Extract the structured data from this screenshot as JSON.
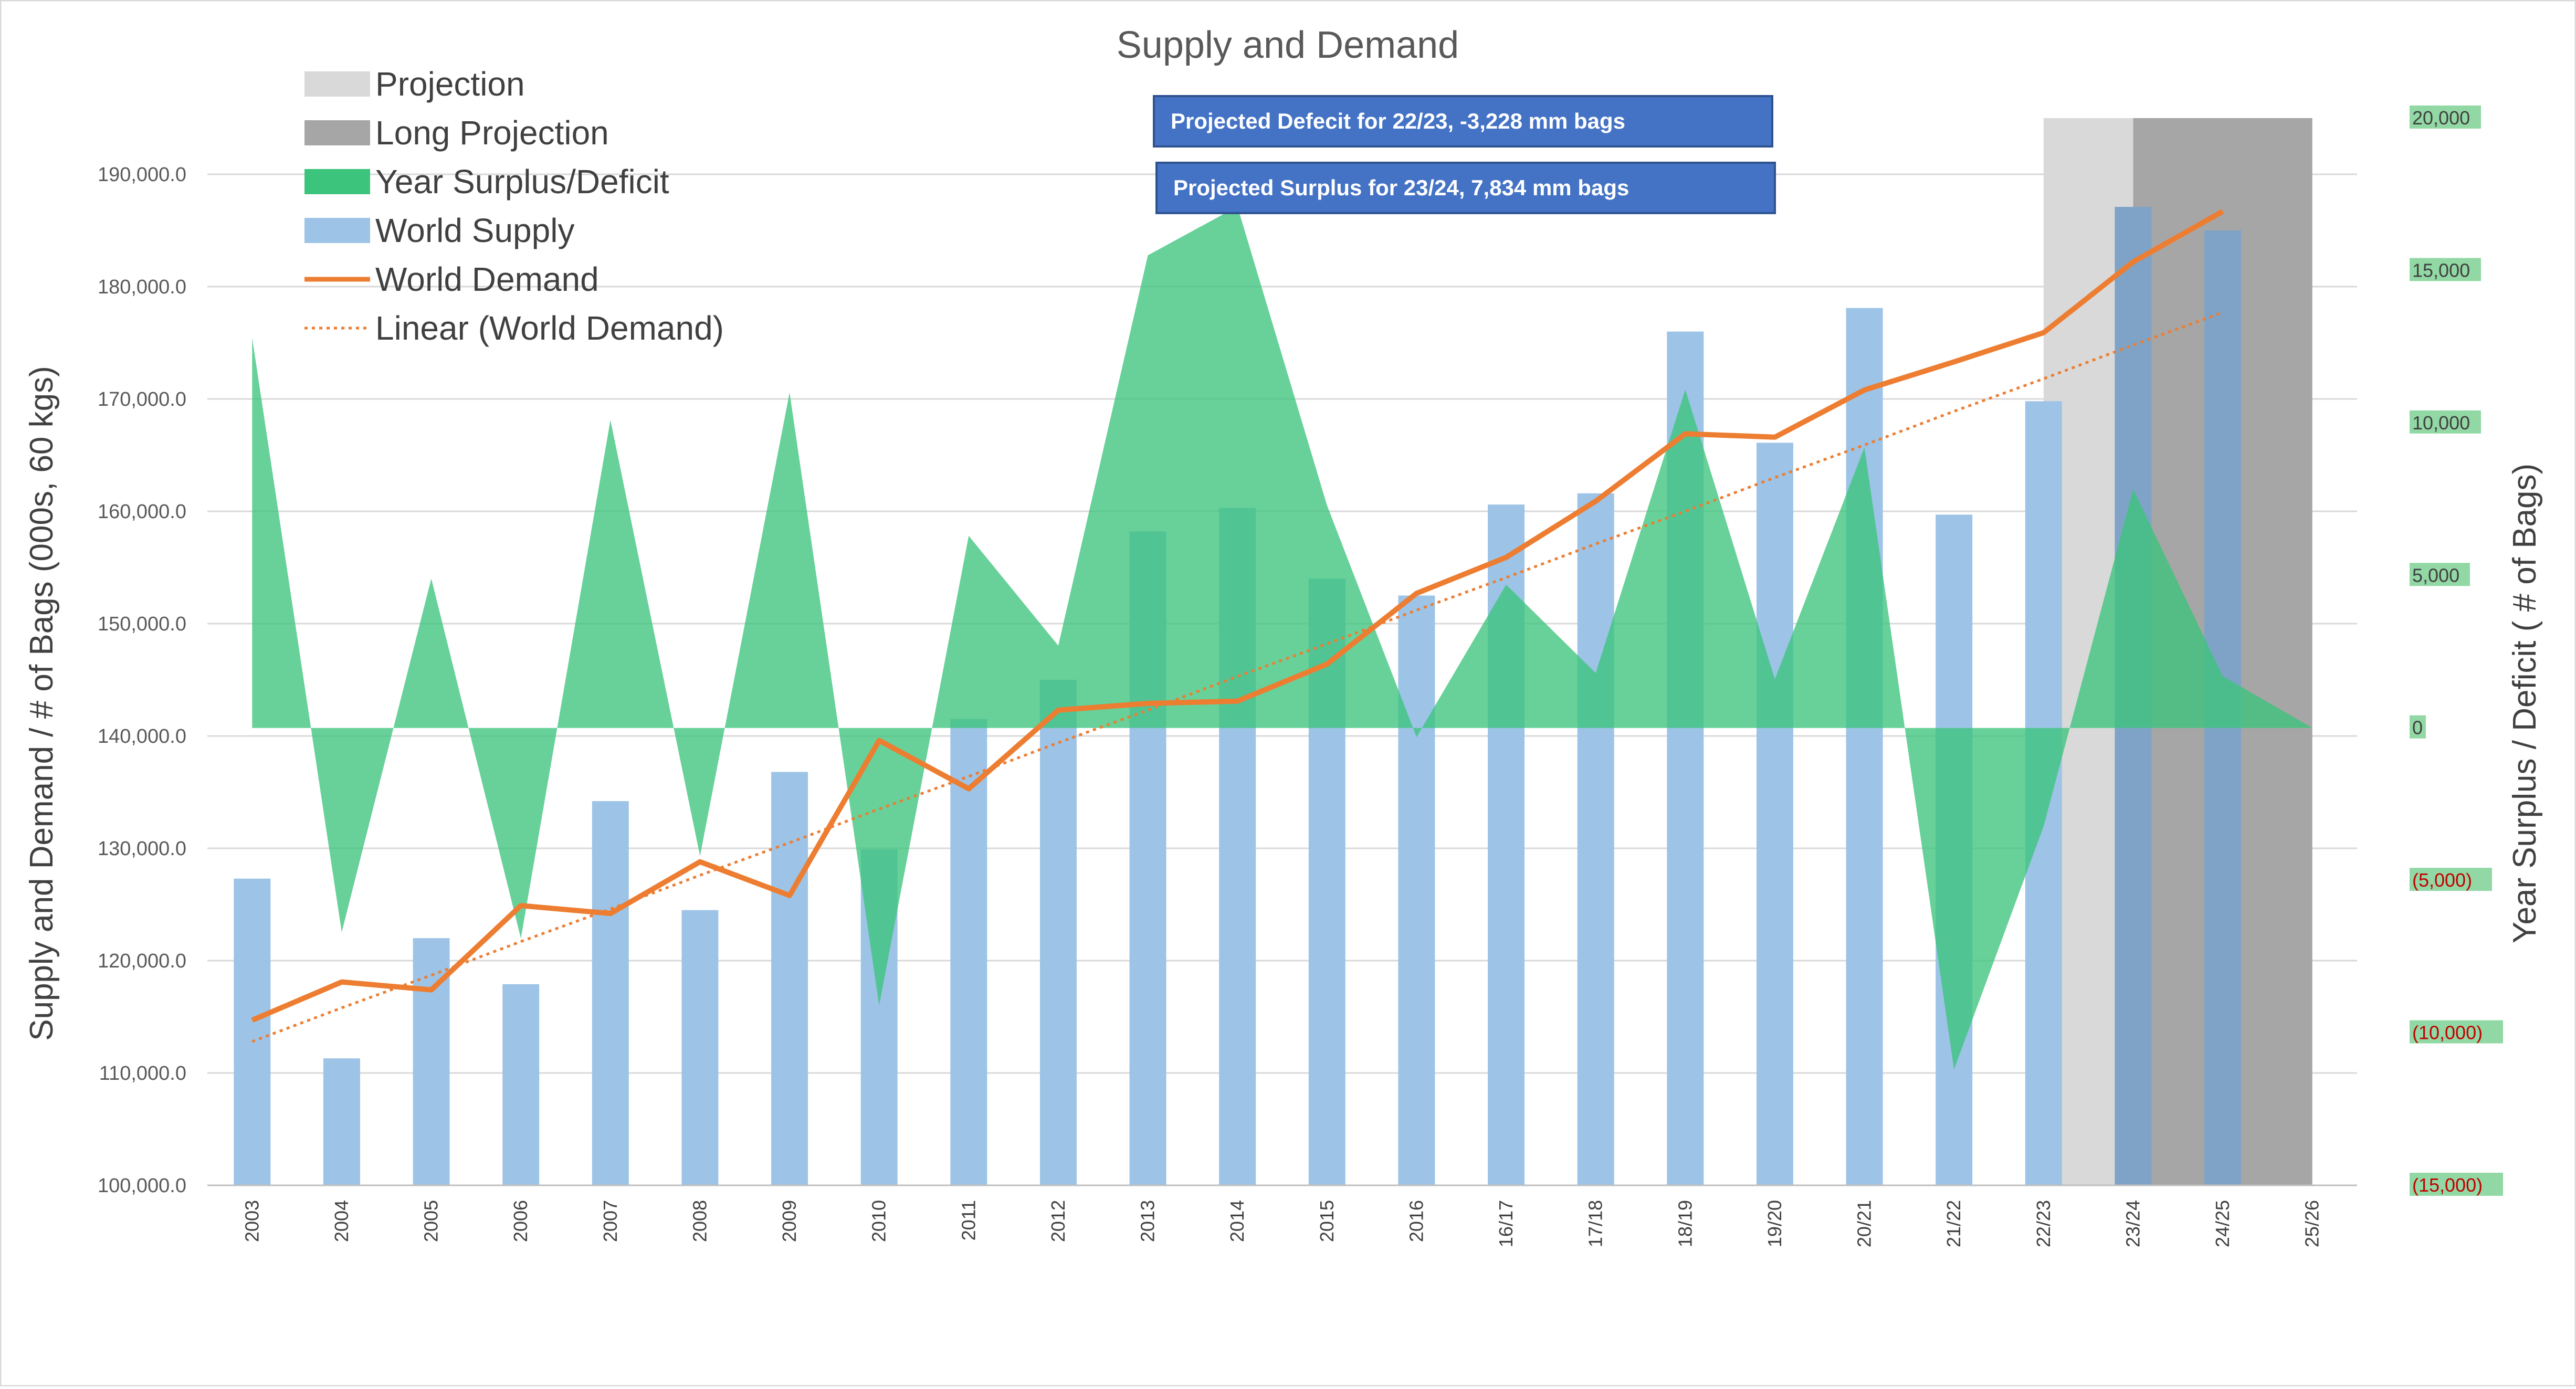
{
  "chart_data": {
    "type": "bar",
    "title": "Supply and Demand",
    "ylabel": "Supply and Demand / # of Bags (000s, 60 kgs)",
    "y2label": "Year Surplus / Deficit ( # of Bags)",
    "ylim": [
      100000,
      195000
    ],
    "y2lim": [
      -15000,
      20000
    ],
    "y_ticks": [
      "100,000.0",
      "110,000.0",
      "120,000.0",
      "130,000.0",
      "140,000.0",
      "150,000.0",
      "160,000.0",
      "170,000.0",
      "180,000.0",
      "190,000.0"
    ],
    "y2_ticks": [
      "(15,000)",
      "(10,000)",
      "(5,000)",
      "0",
      "5,000",
      "10,000",
      "15,000",
      "20,000"
    ],
    "categories": [
      "2003",
      "2004",
      "2005",
      "2006",
      "2007",
      "2008",
      "2009",
      "2010",
      "2011",
      "2012",
      "2013",
      "2014",
      "2015",
      "2016",
      "16/17",
      "17/18",
      "18/19",
      "19/20",
      "20/21",
      "21/22",
      "22/23",
      "23/24",
      "24/25",
      "25/26"
    ],
    "series": [
      {
        "name": "World Supply",
        "type": "bar",
        "axis": "left",
        "color": "#9dc3e6",
        "values": [
          127300,
          111300,
          122000,
          117900,
          134200,
          124500,
          136800,
          129900,
          141500,
          145000,
          158200,
          160300,
          154000,
          152500,
          160600,
          161600,
          176000,
          166100,
          178100,
          159700,
          169800,
          187100,
          185000,
          null
        ]
      },
      {
        "name": "World Demand",
        "type": "line",
        "axis": "left",
        "color": "#ed7d31",
        "values": [
          114700,
          118100,
          117400,
          124900,
          124200,
          128800,
          125800,
          139600,
          135300,
          142300,
          142900,
          143100,
          146400,
          152700,
          155900,
          160900,
          166900,
          166600,
          170800,
          173300,
          175900,
          182200,
          186700,
          null
        ]
      },
      {
        "name": "Year Surplus/Deficit",
        "type": "area",
        "axis": "right",
        "color": "#3cc47c",
        "values": [
          12800,
          -6700,
          4900,
          -6900,
          10100,
          -4200,
          11000,
          -9100,
          6300,
          2700,
          15500,
          17100,
          7300,
          -300,
          4700,
          1800,
          11100,
          1600,
          9200,
          -11200,
          -3228,
          7834,
          1700,
          0
        ]
      },
      {
        "name": "Linear (World Demand)",
        "type": "trendline",
        "axis": "left",
        "color": "#ed7d31",
        "values": [
          112800,
          115800,
          118700,
          121700,
          124600,
          127600,
          130500,
          133500,
          136400,
          139400,
          142300,
          145300,
          148200,
          151200,
          154100,
          157100,
          160000,
          163000,
          165900,
          168900,
          171800,
          174800,
          177700,
          null
        ]
      }
    ],
    "projection_bands": [
      {
        "name": "Projection",
        "color": "#d9d9d9",
        "from_category": "22/23",
        "to_category": "23/24"
      },
      {
        "name": "Long Projection",
        "color": "#a6a6a6",
        "from_category": "23/24",
        "to_category": "25/26"
      }
    ],
    "annotations": [
      "Projected Defecit for 22/23, -3,228 mm bags",
      "Projected Surplus for 23/24, 7,834 mm bags"
    ],
    "legend": {
      "placement": "top-left",
      "entries": [
        "Projection",
        "Long Projection",
        "Year Surplus/Deficit",
        "World Supply",
        "World Demand",
        "Linear (World Demand)"
      ]
    },
    "grid": true
  },
  "colors": {
    "supply": "#9dc3e6",
    "demand": "#ed7d31",
    "surplus": "#3cc47c",
    "projection": "#d9d9d9",
    "long_projection": "#a6a6a6",
    "callout": "#4472c4",
    "negative_tick": "#c00000",
    "right_tick_bg": "#92d8a4"
  }
}
